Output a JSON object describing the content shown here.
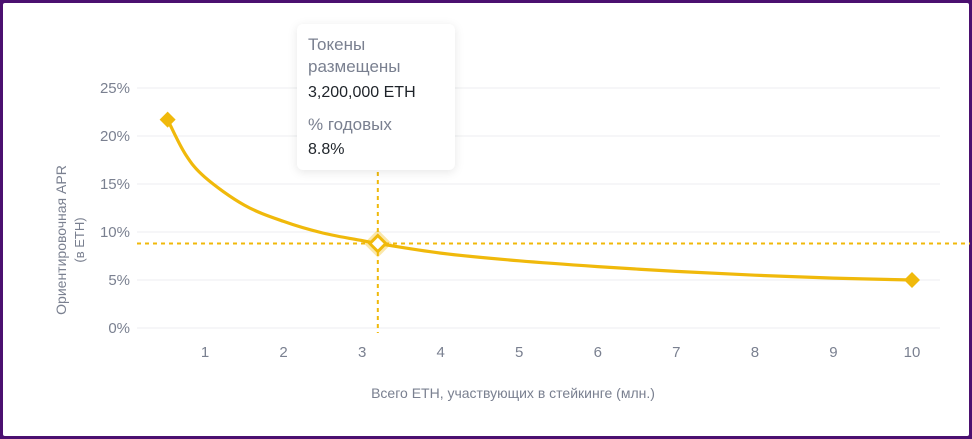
{
  "chart_data": {
    "type": "line",
    "xlabel": "Всего ETH, участвующих в стейкинге (млн.)",
    "ylabel": "Ориентировочная APR",
    "ylabel_sub": "(в ETH)",
    "xlim": [
      0.35,
      10.3
    ],
    "ylim": [
      0,
      25
    ],
    "x_ticks": [
      1,
      2,
      3,
      4,
      5,
      6,
      7,
      8,
      9,
      10
    ],
    "y_ticks": [
      0,
      5,
      10,
      15,
      20,
      25
    ],
    "y_tick_labels": [
      "0%",
      "5%",
      "10%",
      "15%",
      "20%",
      "25%"
    ],
    "grid": "horizontal",
    "line_color": "#f0b90b",
    "series": [
      {
        "x": [
          0.524288,
          0.75,
          1,
          1.5,
          2,
          2.5,
          3,
          3.2,
          4,
          5,
          6,
          7,
          8,
          9,
          10
        ],
        "y": [
          21.7,
          18.1,
          15.7,
          12.8,
          11.1,
          9.9,
          9.1,
          8.8,
          7.8,
          7.0,
          6.4,
          5.9,
          5.5,
          5.2,
          5.0
        ]
      }
    ],
    "endpoints": [
      {
        "x": 0.524288,
        "y": 21.7
      },
      {
        "x": 10,
        "y": 5.0
      }
    ],
    "highlight": {
      "x": 3.2,
      "y": 8.8
    }
  },
  "tooltip": {
    "label_staked": "Токены размещены",
    "value_staked": "3,200,000 ETH",
    "label_apr": "% годовых",
    "value_apr": "8.8%"
  }
}
